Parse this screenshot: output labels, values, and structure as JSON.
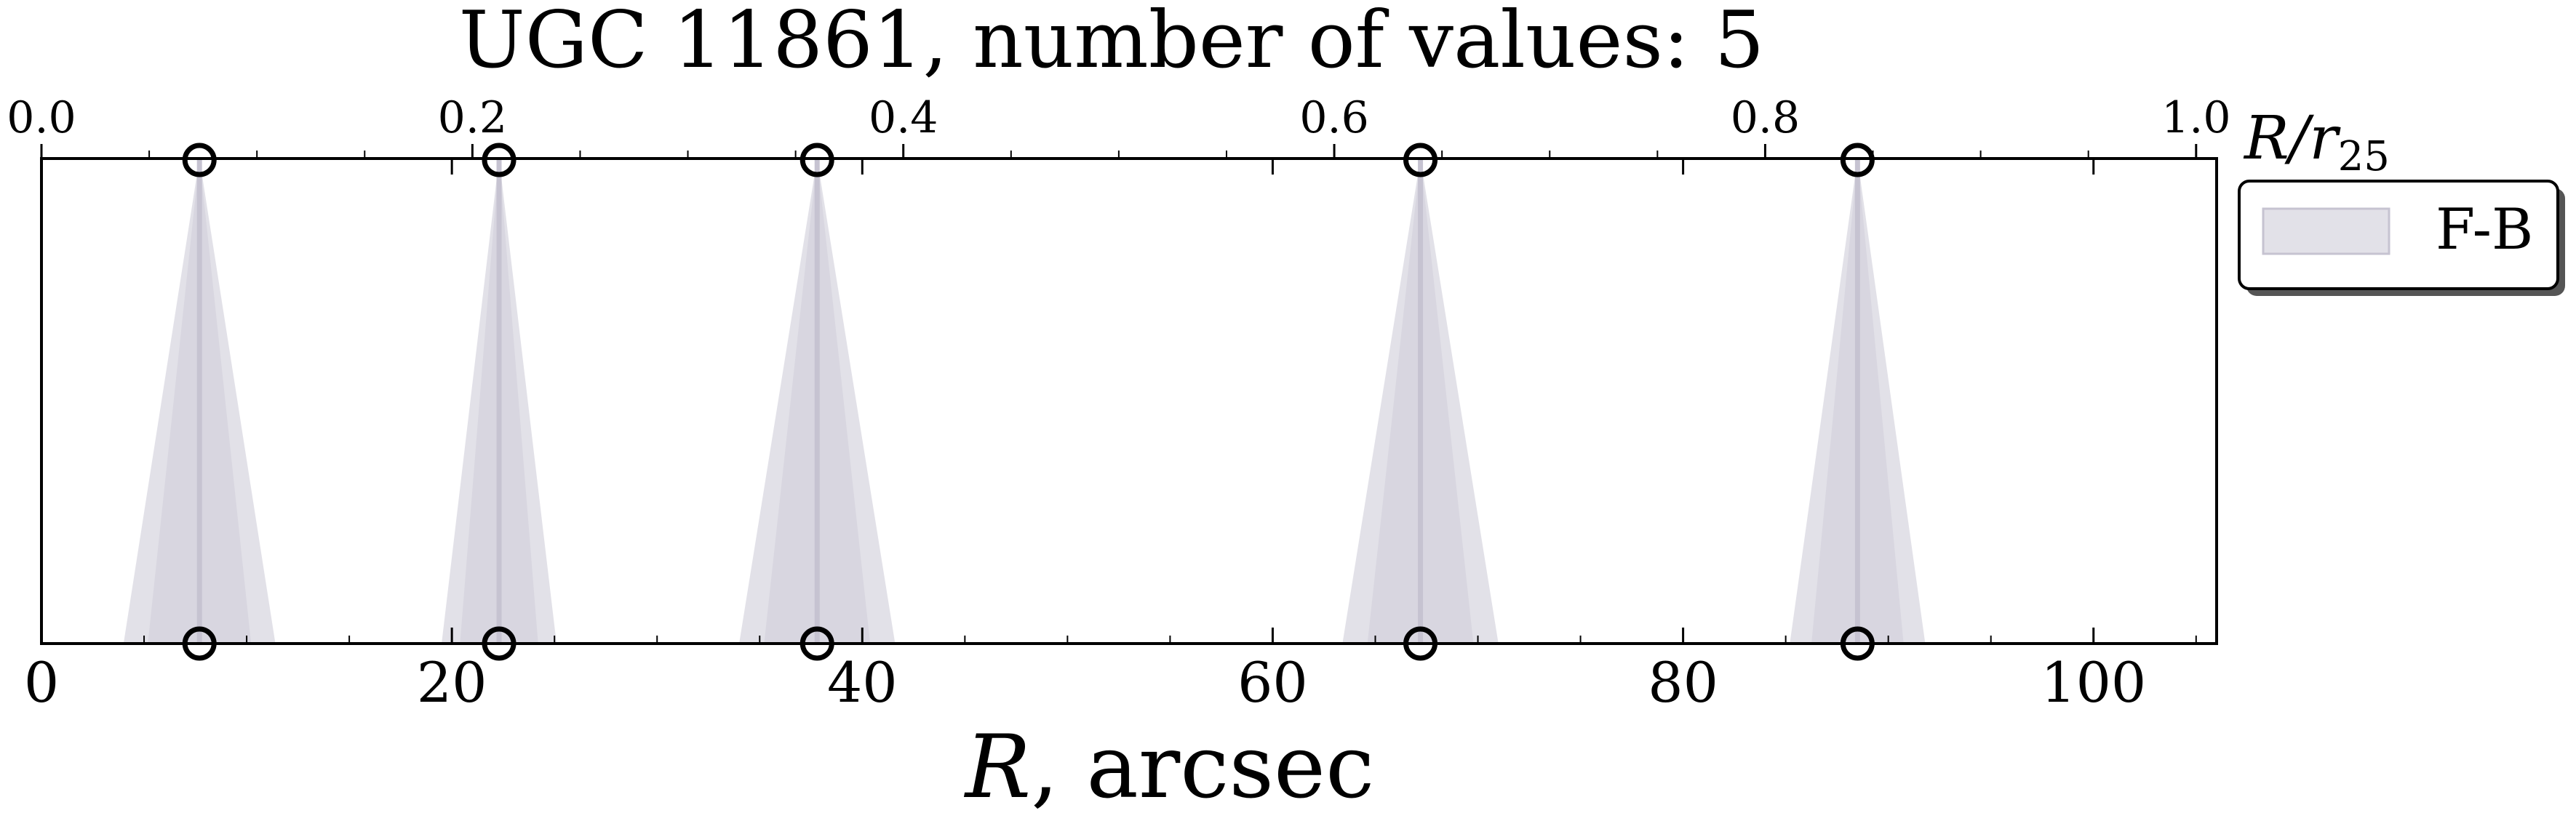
{
  "chart_data": {
    "type": "scatter",
    "title": "UGC 11861, number of values: 5",
    "xlabel_main": "R",
    "xlabel_rest": ", arcsec",
    "xlim": [
      0,
      106
    ],
    "xticks": [
      0,
      20,
      40,
      60,
      80,
      100
    ],
    "xtick_labels": [
      "0",
      "20",
      "40",
      "60",
      "80",
      "100"
    ],
    "top_axis": {
      "label_main": "R/r",
      "label_sub": "25",
      "ticks": [
        0.0,
        0.2,
        0.4,
        0.6,
        0.8,
        1.0
      ],
      "tick_labels": [
        "0.0",
        "0.2",
        "0.4",
        "0.6",
        "0.8",
        "1.0"
      ],
      "r25_arcsec": 105,
      "minor_step": 0.05
    },
    "x_minor_step": 5,
    "grid": false,
    "legend": {
      "position": "outside-right-top",
      "entries": [
        "F-B"
      ]
    },
    "series": [
      {
        "name": "F-B",
        "color": "#c6c3d1",
        "points": [
          {
            "x": 7.7,
            "width": 7.4
          },
          {
            "x": 22.3,
            "width": 5.6
          },
          {
            "x": 37.8,
            "width": 7.6
          },
          {
            "x": 67.2,
            "width": 7.6
          },
          {
            "x": 88.5,
            "width": 6.6
          }
        ]
      }
    ]
  }
}
